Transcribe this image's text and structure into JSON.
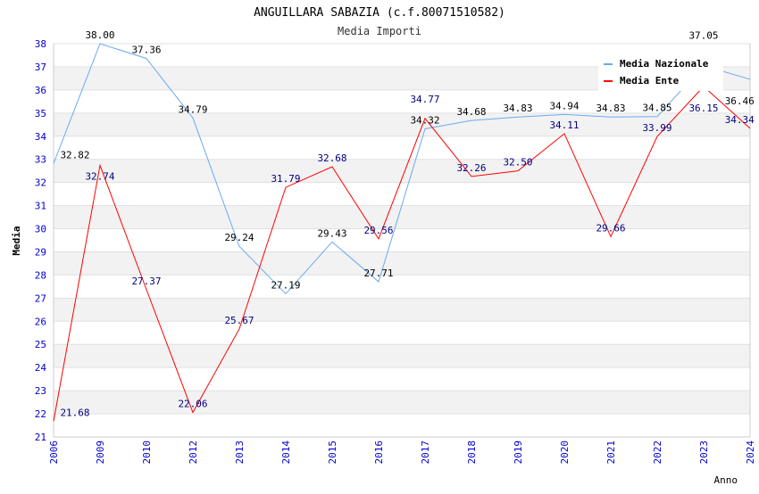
{
  "chart_data": {
    "type": "line",
    "title": "ANGUILLARA SABAZIA (c.f.80071510582)",
    "subtitle": "Media Importi",
    "xlabel": "Anno",
    "ylabel": "Media",
    "ylim": [
      21,
      38
    ],
    "yticks": [
      21,
      22,
      23,
      24,
      25,
      26,
      27,
      28,
      29,
      30,
      31,
      32,
      33,
      34,
      35,
      36,
      37,
      38
    ],
    "categories": [
      "2006",
      "2009",
      "2010",
      "2012",
      "2013",
      "2014",
      "2015",
      "2016",
      "2017",
      "2018",
      "2019",
      "2020",
      "2021",
      "2022",
      "2023",
      "2024"
    ],
    "legend_position": "top-right",
    "series": [
      {
        "name": "Media Nazionale",
        "color": "#6aaaf0",
        "label_color": "#000000",
        "values": [
          32.82,
          38.0,
          37.36,
          34.79,
          29.24,
          27.19,
          29.43,
          27.71,
          34.32,
          34.68,
          34.83,
          34.94,
          34.83,
          34.85,
          37.05,
          36.46
        ]
      },
      {
        "name": "Media Ente",
        "color": "#ff0000",
        "label_color": "#000080",
        "values": [
          21.68,
          32.74,
          27.37,
          22.06,
          25.67,
          31.79,
          32.68,
          29.56,
          34.77,
          32.26,
          32.5,
          34.11,
          29.66,
          33.99,
          36.15,
          34.34
        ]
      }
    ]
  }
}
